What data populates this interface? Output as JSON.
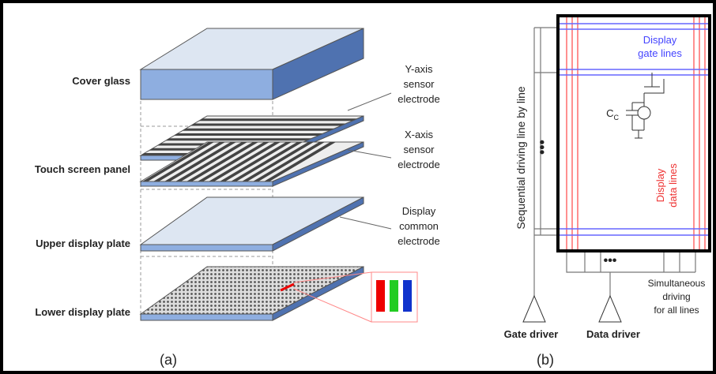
{
  "panel_a": {
    "layer_labels": [
      "Cover glass",
      "Touch screen panel",
      "Upper display plate",
      "Lower display plate"
    ],
    "callouts": [
      {
        "lines": [
          "Y-axis",
          "sensor",
          "electrode"
        ]
      },
      {
        "lines": [
          "X-axis",
          "sensor",
          "electrode"
        ]
      },
      {
        "lines": [
          "Display",
          "common",
          "electrode"
        ]
      }
    ],
    "caption": "(a)"
  },
  "panel_b": {
    "gate_lines_label": [
      "Display",
      "gate lines"
    ],
    "capacitor_label": {
      "main": "C",
      "sub": "C"
    },
    "data_lines_label": [
      "Display",
      "data lines"
    ],
    "sequential_label": "Sequential driving line by line",
    "simultaneous_label": [
      "Simultaneous",
      "driving",
      "for all lines"
    ],
    "gate_driver": "Gate driver",
    "data_driver": "Data driver",
    "caption": "(b)"
  }
}
